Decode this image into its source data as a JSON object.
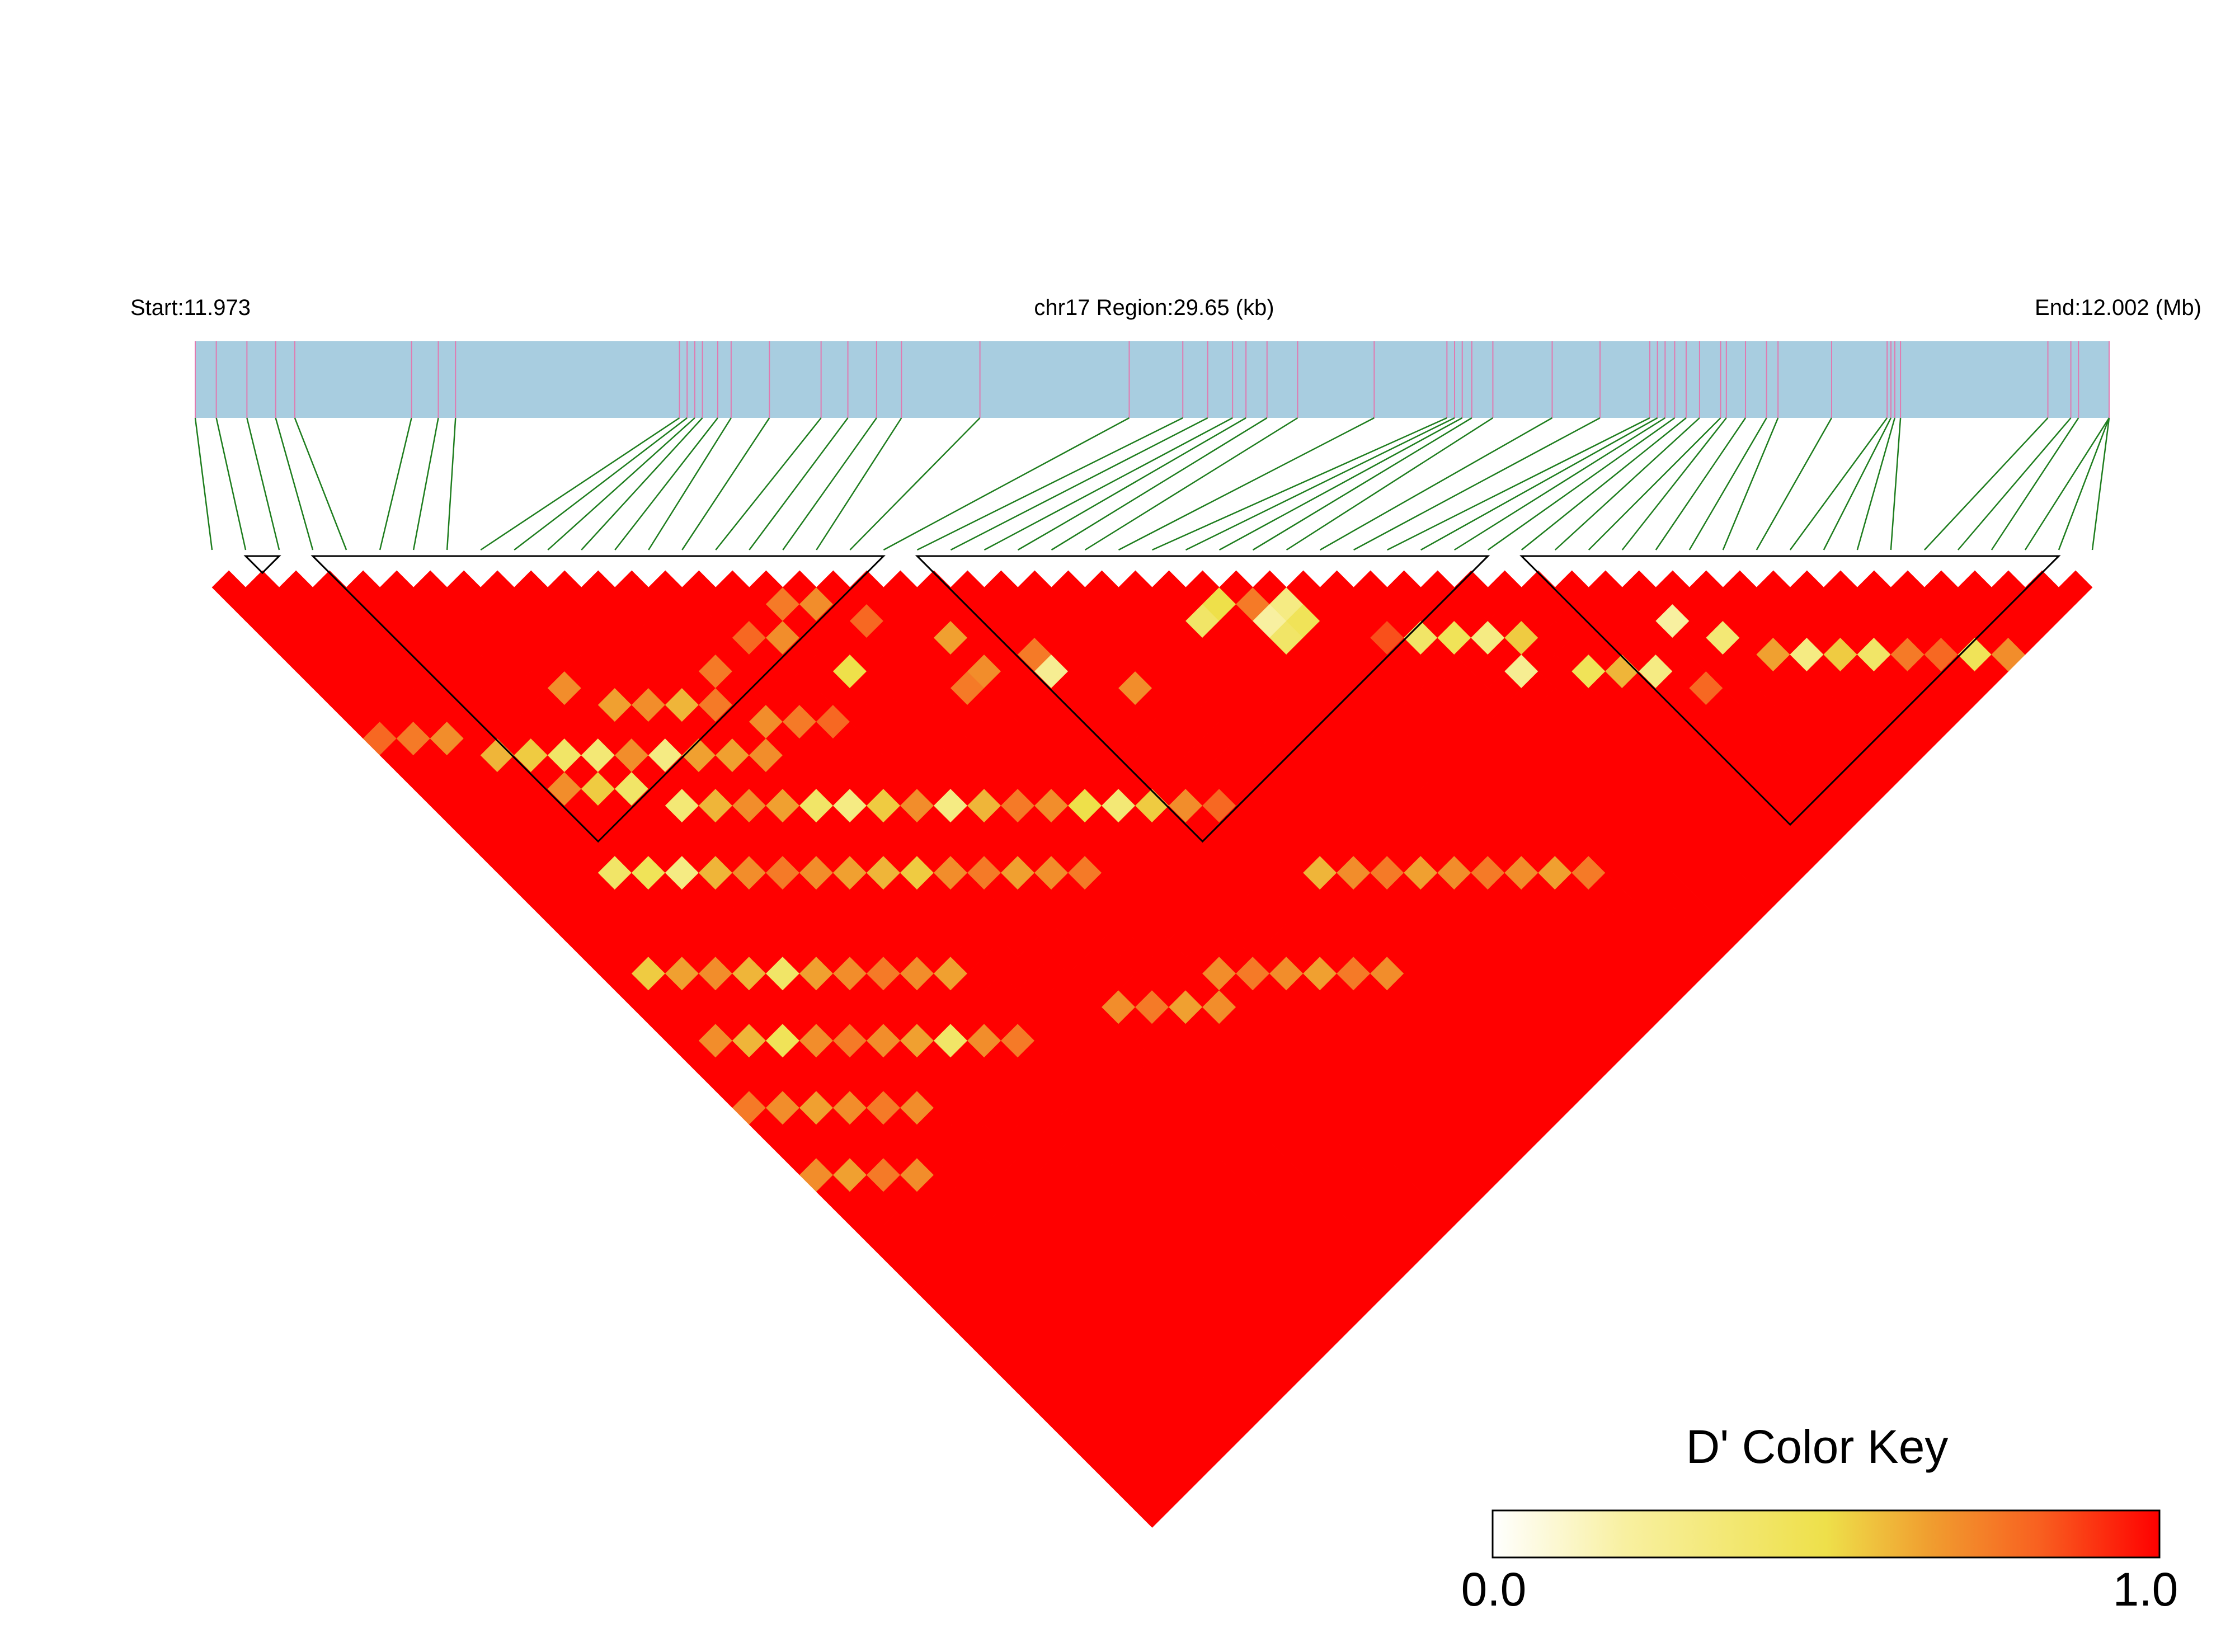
{
  "header": {
    "start_label": "Start:11.973",
    "region_label": "chr17 Region:29.65 (kb)",
    "end_label": "End:12.002 (Mb)"
  },
  "colors": {
    "region_bar": "#a8cde0",
    "snp_tick": "#e07ab0",
    "connector": "#1e7d1e",
    "block_outline": "#000000",
    "scale": [
      "#ffffff",
      "#f8f0a0",
      "#eee04a",
      "#f0a030",
      "#f86020",
      "#ff0000"
    ]
  },
  "chart_data": {
    "type": "heatmap",
    "title": "",
    "xlabel": "",
    "ylabel": "",
    "region": {
      "chromosome": "chr17",
      "start_mb": 11.973,
      "end_mb": 12.002,
      "length_kb": 29.65
    },
    "snp_count": 57,
    "snp_positions_fraction": [
      0.0,
      0.011,
      0.027,
      0.042,
      0.052,
      0.113,
      0.127,
      0.136,
      0.253,
      0.257,
      0.261,
      0.265,
      0.273,
      0.28,
      0.3,
      0.327,
      0.341,
      0.356,
      0.369,
      0.41,
      0.488,
      0.516,
      0.529,
      0.542,
      0.549,
      0.56,
      0.576,
      0.616,
      0.654,
      0.658,
      0.662,
      0.667,
      0.678,
      0.709,
      0.734,
      0.76,
      0.764,
      0.768,
      0.773,
      0.779,
      0.786,
      0.797,
      0.8,
      0.81,
      0.821,
      0.827,
      0.855,
      0.884,
      0.886,
      0.888,
      0.891,
      0.968,
      0.98,
      0.984,
      1.0,
      1.002,
      1.0
    ],
    "haplotype_blocks": [
      [
        1,
        2
      ],
      [
        3,
        20
      ],
      [
        21,
        38
      ],
      [
        39,
        55
      ]
    ],
    "ld_metric": "D'",
    "color_key": {
      "title": "D' Color Key",
      "min": 0.0,
      "max": 1.0,
      "min_label": "0.0",
      "max_label": "1.0"
    },
    "ld_low_value_cells": [
      [
        16,
        18,
        0.75
      ],
      [
        17,
        19,
        0.7
      ],
      [
        14,
        18,
        0.8
      ],
      [
        12,
        18,
        0.75
      ],
      [
        18,
        21,
        0.8
      ],
      [
        15,
        19,
        0.7
      ],
      [
        20,
        24,
        0.65
      ],
      [
        19,
        26,
        0.75
      ],
      [
        22,
        27,
        0.75
      ],
      [
        20,
        26,
        0.7
      ],
      [
        16,
        22,
        0.5
      ],
      [
        22,
        28,
        0.25
      ],
      [
        24,
        31,
        0.7
      ],
      [
        30,
        33,
        0.2
      ],
      [
        28,
        31,
        0.4
      ],
      [
        30,
        32,
        0.75
      ],
      [
        31,
        33,
        0.3
      ],
      [
        29,
        31,
        0.5
      ],
      [
        31,
        34,
        0.45
      ],
      [
        30,
        34,
        0.4
      ],
      [
        33,
        37,
        0.85
      ],
      [
        34,
        38,
        0.4
      ],
      [
        35,
        39,
        0.45
      ],
      [
        36,
        40,
        0.3
      ],
      [
        37,
        41,
        0.55
      ],
      [
        36,
        42,
        0.25
      ],
      [
        38,
        44,
        0.45
      ],
      [
        39,
        45,
        0.6
      ],
      [
        40,
        46,
        0.3
      ],
      [
        41,
        48,
        0.8
      ],
      [
        42,
        45,
        0.2
      ],
      [
        43,
        47,
        0.35
      ],
      [
        44,
        49,
        0.65
      ],
      [
        45,
        50,
        0.3
      ],
      [
        46,
        51,
        0.55
      ],
      [
        47,
        52,
        0.4
      ],
      [
        48,
        53,
        0.75
      ],
      [
        49,
        54,
        0.8
      ],
      [
        50,
        55,
        0.45
      ],
      [
        51,
        56,
        0.7
      ],
      [
        7,
        14,
        0.7
      ],
      [
        8,
        16,
        0.65
      ],
      [
        9,
        17,
        0.7
      ],
      [
        10,
        18,
        0.6
      ],
      [
        11,
        19,
        0.75
      ],
      [
        12,
        21,
        0.7
      ],
      [
        13,
        22,
        0.75
      ],
      [
        14,
        23,
        0.8
      ],
      [
        10,
        21,
        0.65
      ],
      [
        11,
        22,
        0.7
      ],
      [
        0,
        10,
        0.8
      ],
      [
        1,
        11,
        0.75
      ],
      [
        2,
        12,
        0.7
      ],
      [
        3,
        14,
        0.6
      ],
      [
        4,
        15,
        0.55
      ],
      [
        5,
        16,
        0.4
      ],
      [
        6,
        17,
        0.35
      ],
      [
        7,
        18,
        0.7
      ],
      [
        8,
        19,
        0.3
      ],
      [
        9,
        20,
        0.65
      ],
      [
        4,
        17,
        0.7
      ],
      [
        5,
        18,
        0.55
      ],
      [
        6,
        19,
        0.4
      ],
      [
        7,
        21,
        0.35
      ],
      [
        8,
        22,
        0.6
      ],
      [
        9,
        23,
        0.7
      ],
      [
        10,
        24,
        0.65
      ],
      [
        11,
        25,
        0.4
      ],
      [
        12,
        26,
        0.3
      ],
      [
        13,
        27,
        0.55
      ],
      [
        14,
        28,
        0.7
      ],
      [
        15,
        29,
        0.3
      ],
      [
        16,
        30,
        0.6
      ],
      [
        17,
        31,
        0.75
      ],
      [
        18,
        32,
        0.7
      ],
      [
        19,
        33,
        0.5
      ],
      [
        20,
        34,
        0.35
      ],
      [
        21,
        35,
        0.55
      ],
      [
        22,
        36,
        0.7
      ],
      [
        23,
        37,
        0.8
      ],
      [
        3,
        21,
        0.4
      ],
      [
        4,
        22,
        0.45
      ],
      [
        5,
        23,
        0.3
      ],
      [
        6,
        24,
        0.6
      ],
      [
        7,
        25,
        0.7
      ],
      [
        8,
        26,
        0.75
      ],
      [
        9,
        27,
        0.7
      ],
      [
        10,
        28,
        0.65
      ],
      [
        11,
        29,
        0.6
      ],
      [
        12,
        30,
        0.55
      ],
      [
        13,
        31,
        0.7
      ],
      [
        14,
        32,
        0.75
      ],
      [
        15,
        33,
        0.65
      ],
      [
        16,
        34,
        0.7
      ],
      [
        17,
        35,
        0.75
      ],
      [
        1,
        25,
        0.55
      ],
      [
        2,
        26,
        0.65
      ],
      [
        3,
        27,
        0.7
      ],
      [
        4,
        28,
        0.6
      ],
      [
        5,
        29,
        0.4
      ],
      [
        6,
        30,
        0.65
      ],
      [
        7,
        31,
        0.7
      ],
      [
        8,
        32,
        0.75
      ],
      [
        9,
        33,
        0.7
      ],
      [
        10,
        34,
        0.65
      ],
      [
        1,
        29,
        0.7
      ],
      [
        2,
        30,
        0.6
      ],
      [
        3,
        31,
        0.45
      ],
      [
        4,
        32,
        0.7
      ],
      [
        5,
        33,
        0.75
      ],
      [
        6,
        34,
        0.7
      ],
      [
        7,
        35,
        0.65
      ],
      [
        8,
        36,
        0.4
      ],
      [
        9,
        37,
        0.7
      ],
      [
        10,
        38,
        0.75
      ],
      [
        0,
        32,
        0.75
      ],
      [
        1,
        33,
        0.7
      ],
      [
        2,
        34,
        0.65
      ],
      [
        3,
        35,
        0.7
      ],
      [
        4,
        36,
        0.75
      ],
      [
        5,
        37,
        0.7
      ],
      [
        0,
        36,
        0.7
      ],
      [
        1,
        37,
        0.65
      ],
      [
        2,
        38,
        0.75
      ],
      [
        3,
        39,
        0.7
      ],
      [
        24,
        42,
        0.6
      ],
      [
        25,
        43,
        0.7
      ],
      [
        26,
        44,
        0.75
      ],
      [
        27,
        45,
        0.65
      ],
      [
        28,
        46,
        0.7
      ],
      [
        29,
        47,
        0.75
      ],
      [
        30,
        48,
        0.7
      ],
      [
        31,
        49,
        0.65
      ],
      [
        32,
        50,
        0.75
      ],
      [
        18,
        42,
        0.7
      ],
      [
        19,
        43,
        0.75
      ],
      [
        20,
        44,
        0.7
      ],
      [
        21,
        45,
        0.65
      ],
      [
        22,
        46,
        0.75
      ],
      [
        23,
        47,
        0.7
      ],
      [
        14,
        40,
        0.7
      ],
      [
        15,
        41,
        0.75
      ],
      [
        16,
        42,
        0.65
      ],
      [
        17,
        43,
        0.7
      ]
    ]
  }
}
